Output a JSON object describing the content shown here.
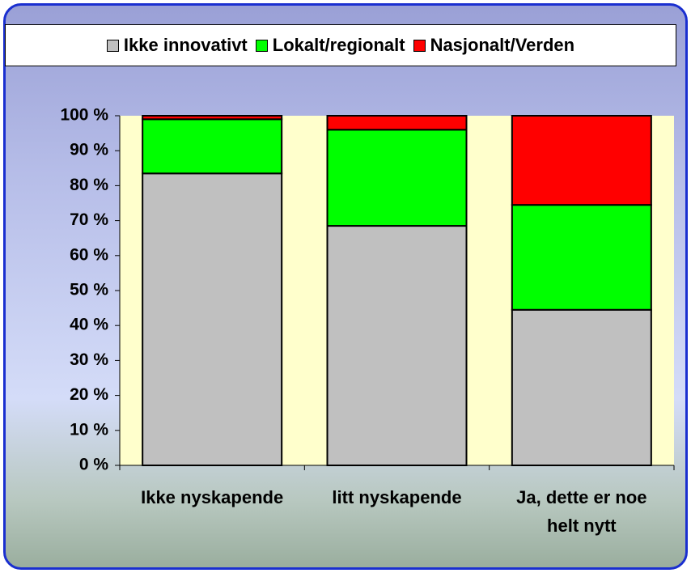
{
  "chart_data": {
    "type": "stacked_bar",
    "categories": [
      "Ikke nyskapende",
      "litt nyskapende",
      "Ja, dette er noe helt nytt"
    ],
    "series": [
      {
        "name": "Ikke innovativt",
        "color": "#c0c0c0",
        "values": [
          83.5,
          68.5,
          44.5
        ]
      },
      {
        "name": "Lokalt/regionalt",
        "color": "#00ff00",
        "values": [
          15.5,
          27.5,
          30
        ]
      },
      {
        "name": "Nasjonalt/Verden",
        "color": "#ff0000",
        "values": [
          1,
          4,
          25.5
        ]
      }
    ],
    "ylim": [
      0,
      100
    ],
    "yticks": [
      {
        "value": 0,
        "label": "0 %"
      },
      {
        "value": 10,
        "label": "10 %"
      },
      {
        "value": 20,
        "label": "20 %"
      },
      {
        "value": 30,
        "label": "30 %"
      },
      {
        "value": 40,
        "label": "40 %"
      },
      {
        "value": 50,
        "label": "50 %"
      },
      {
        "value": 60,
        "label": "60 %"
      },
      {
        "value": 70,
        "label": "70 %"
      },
      {
        "value": 80,
        "label": "80 %"
      },
      {
        "value": 90,
        "label": "90 %"
      },
      {
        "value": 100,
        "label": "100 %"
      }
    ],
    "plot_background": "#ffffcc",
    "legend": "top"
  }
}
